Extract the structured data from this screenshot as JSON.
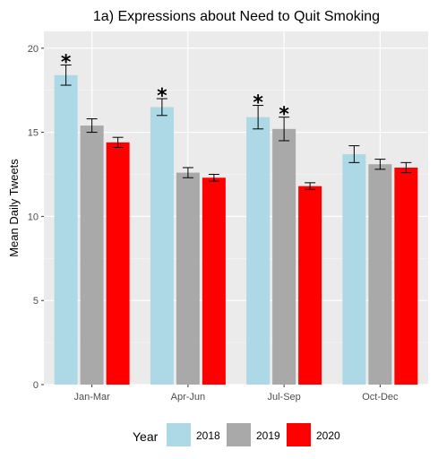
{
  "chart_data": {
    "type": "bar",
    "title": "1a) Expressions about Need to Quit Smoking",
    "xlabel": "",
    "ylabel": "Mean Daily Tweets",
    "categories": [
      "Jan-Mar",
      "Apr-Jun",
      "Jul-Sep",
      "Oct-Dec"
    ],
    "ylim": [
      0,
      21
    ],
    "yticks": [
      0,
      5,
      10,
      15,
      20
    ],
    "grid": true,
    "legend": {
      "title": "Year",
      "position": "bottom"
    },
    "series": [
      {
        "name": "2018",
        "color": "#add8e6",
        "values": [
          18.4,
          16.5,
          15.9,
          13.7
        ],
        "err_low": [
          17.8,
          16.0,
          15.2,
          13.2
        ],
        "err_high": [
          19.0,
          17.0,
          16.6,
          14.2
        ],
        "significant": [
          true,
          true,
          true,
          false
        ]
      },
      {
        "name": "2019",
        "color": "#a9a9a9",
        "values": [
          15.4,
          12.6,
          15.2,
          13.1
        ],
        "err_low": [
          15.0,
          12.3,
          14.5,
          12.8
        ],
        "err_high": [
          15.8,
          12.9,
          15.9,
          13.4
        ],
        "significant": [
          false,
          false,
          true,
          false
        ]
      },
      {
        "name": "2020",
        "color": "#ff0000",
        "values": [
          14.4,
          12.3,
          11.8,
          12.9
        ],
        "err_low": [
          14.1,
          12.1,
          11.6,
          12.6
        ],
        "err_high": [
          14.7,
          12.5,
          12.0,
          13.2
        ],
        "significant": [
          false,
          false,
          false,
          false
        ]
      }
    ],
    "significance_marker": "*"
  }
}
